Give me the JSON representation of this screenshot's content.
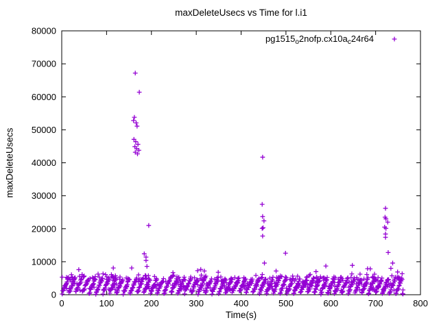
{
  "chart_data": {
    "type": "scatter",
    "title": "maxDeleteUsecs vs Time for l.i1",
    "xlabel": "Time(s)",
    "ylabel": "maxDeleteUsecs",
    "xlim": [
      0,
      800
    ],
    "ylim": [
      0,
      80000
    ],
    "xticks": [
      0,
      100,
      200,
      300,
      400,
      500,
      600,
      700,
      800
    ],
    "yticks": [
      0,
      10000,
      20000,
      30000,
      40000,
      50000,
      60000,
      70000,
      80000
    ],
    "grid": false,
    "background": "#ffffff",
    "axis_color": "#000000",
    "legend_position": "top-right-inside",
    "series": [
      {
        "name": "pg1515_o2nofp.cx10a_c24r64",
        "name_segments": [
          {
            "text": "pg1515",
            "sub": false
          },
          {
            "text": "o",
            "sub": true
          },
          {
            "text": "2nofp.cx10a",
            "sub": false
          },
          {
            "text": "c",
            "sub": true
          },
          {
            "text": "24r64",
            "sub": false
          }
        ],
        "marker": "plus",
        "color": "#9400d3",
        "outlier_points": [
          [
            164,
            67200
          ],
          [
            173,
            61400
          ],
          [
            162,
            53800
          ],
          [
            160,
            52800
          ],
          [
            166,
            52100
          ],
          [
            168,
            51100
          ],
          [
            161,
            47100
          ],
          [
            165,
            46400
          ],
          [
            170,
            45600
          ],
          [
            163,
            44900
          ],
          [
            167,
            44300
          ],
          [
            172,
            43800
          ],
          [
            164,
            43200
          ],
          [
            169,
            42700
          ],
          [
            194,
            21000
          ],
          [
            184,
            12400
          ],
          [
            188,
            11400
          ],
          [
            188,
            10400
          ],
          [
            190,
            8600
          ],
          [
            38,
            7600
          ],
          [
            115,
            8100
          ],
          [
            156,
            8100
          ],
          [
            248,
            6700
          ],
          [
            303,
            7300
          ],
          [
            310,
            7650
          ],
          [
            318,
            7200
          ],
          [
            349,
            6800
          ],
          [
            448,
            41700
          ],
          [
            447,
            27400
          ],
          [
            448,
            23700
          ],
          [
            451,
            22400
          ],
          [
            449,
            20300
          ],
          [
            447,
            20100
          ],
          [
            448,
            17800
          ],
          [
            452,
            9600
          ],
          [
            499,
            12600
          ],
          [
            478,
            7200
          ],
          [
            567,
            7000
          ],
          [
            589,
            8700
          ],
          [
            648,
            8900
          ],
          [
            682,
            7900
          ],
          [
            688,
            7850
          ],
          [
            722,
            26200
          ],
          [
            721,
            23500
          ],
          [
            723,
            23000
          ],
          [
            727,
            22000
          ],
          [
            720,
            20500
          ],
          [
            723,
            20100
          ],
          [
            722,
            18400
          ],
          [
            722,
            17400
          ],
          [
            728,
            12800
          ],
          [
            738,
            9600
          ],
          [
            734,
            8000
          ],
          [
            749,
            6900
          ]
        ],
        "baseline_band": {
          "description": "dense sawtooth band of per-second samples along the bottom",
          "t_start": 1,
          "t_end": 761,
          "step": 1,
          "period": 15.2,
          "y_base": 400,
          "y_peak": 5100,
          "noise": 520,
          "y_min": 120,
          "second_prob": 0.22,
          "seed": 7,
          "extra": {
            "count": 80,
            "y_min": 4600,
            "y_max": 6400
          }
        }
      }
    ]
  }
}
